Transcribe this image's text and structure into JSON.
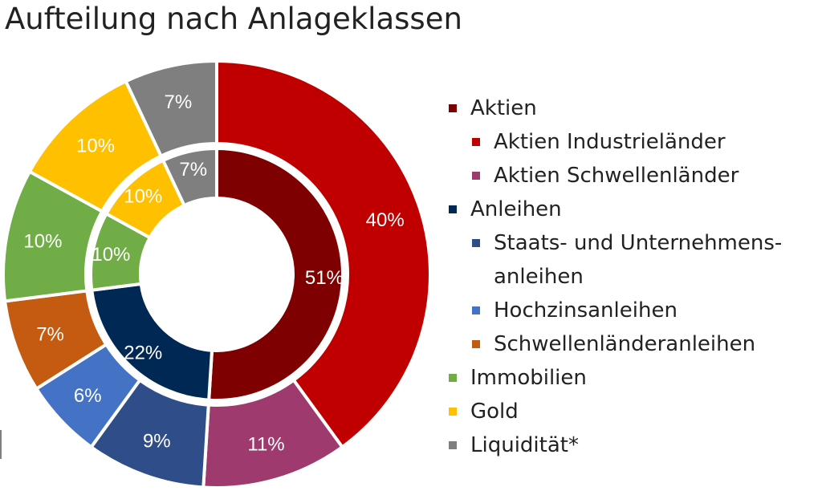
{
  "title": "Aufteilung nach Anlageklassen",
  "chart_data": {
    "type": "pie",
    "subtype": "double-donut",
    "title": "Aufteilung nach Anlageklassen",
    "inner_ring": [
      {
        "name": "Aktien",
        "value": 51,
        "label": "51%",
        "color": "#7f0000"
      },
      {
        "name": "Anleihen",
        "value": 22,
        "label": "22%",
        "color": "#002855"
      },
      {
        "name": "Immobilien",
        "value": 10,
        "label": "10%",
        "color": "#70ad47"
      },
      {
        "name": "Gold",
        "value": 10,
        "label": "10%",
        "color": "#ffc000"
      },
      {
        "name": "Liquidität*",
        "value": 7,
        "label": "7%",
        "color": "#7f7f7f"
      }
    ],
    "outer_ring": [
      {
        "name": "Aktien Industrieländer",
        "value": 40,
        "label": "40%",
        "color": "#c00000"
      },
      {
        "name": "Aktien Schwellenländer",
        "value": 11,
        "label": "11%",
        "color": "#9e3a6e"
      },
      {
        "name": "Staats- und Unternehmensanleihen",
        "value": 9,
        "label": "9%",
        "color": "#2f4d89"
      },
      {
        "name": "Hochzinsanleihen",
        "value": 6,
        "label": "6%",
        "color": "#4472c4"
      },
      {
        "name": "Schwellenländeranleihen",
        "value": 7,
        "label": "7%",
        "color": "#c55a11"
      },
      {
        "name": "Immobilien",
        "value": 10,
        "label": "10%",
        "color": "#70ad47"
      },
      {
        "name": "Gold",
        "value": 10,
        "label": "10%",
        "color": "#ffc000"
      },
      {
        "name": "Liquidität*",
        "value": 7,
        "label": "7%",
        "color": "#7f7f7f"
      }
    ],
    "legend": [
      {
        "label": "Aktien",
        "level": 1,
        "color": "#7f0000"
      },
      {
        "label": "Aktien Industrieländer",
        "level": 2,
        "color": "#c00000"
      },
      {
        "label": "Aktien Schwellenländer",
        "level": 2,
        "color": "#9e3a6e"
      },
      {
        "label": "Anleihen",
        "level": 1,
        "color": "#002855"
      },
      {
        "label": "Staats- und Unternehmens-anleihen",
        "level": 2,
        "color": "#2f4d89"
      },
      {
        "label": "Hochzinsanleihen",
        "level": 2,
        "color": "#4472c4"
      },
      {
        "label": "Schwellenländeranleihen",
        "level": 2,
        "color": "#c55a11"
      },
      {
        "label": "Immobilien",
        "level": 1,
        "color": "#70ad47"
      },
      {
        "label": "Gold",
        "level": 1,
        "color": "#ffc000"
      },
      {
        "label": "Liquidität*",
        "level": 1,
        "color": "#7f7f7f"
      }
    ],
    "legend_position": "right"
  }
}
